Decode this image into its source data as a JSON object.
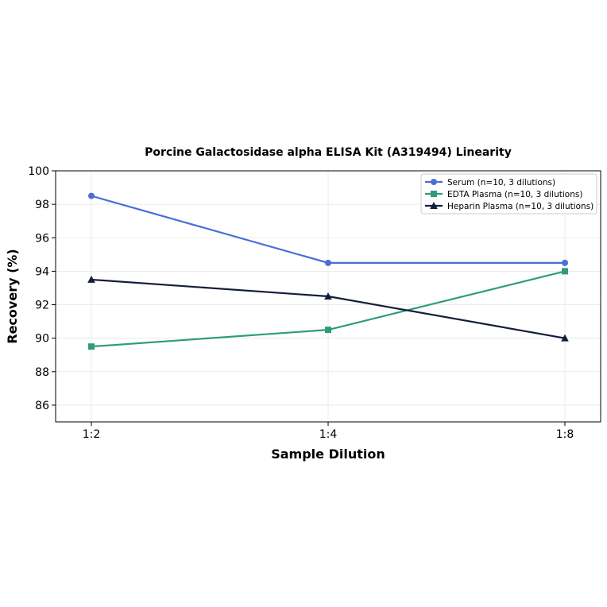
{
  "chart_data": {
    "type": "line",
    "title": "Porcine Galactosidase alpha ELISA Kit (A319494) Linearity",
    "xlabel": "Sample Dilution",
    "ylabel": "Recovery (%)",
    "categories": [
      "1:2",
      "1:4",
      "1:8"
    ],
    "ylim": [
      85,
      100
    ],
    "yticks": [
      86,
      88,
      90,
      92,
      94,
      96,
      98,
      100
    ],
    "grid": true,
    "legend_position": "top-right",
    "series": [
      {
        "name": "Serum (n=10, 3 dilutions)",
        "values": [
          98.5,
          94.5,
          94.5
        ],
        "color": "#4a6fd6",
        "marker": "circle"
      },
      {
        "name": "EDTA Plasma (n=10, 3 dilutions)",
        "values": [
          89.5,
          90.5,
          94.0
        ],
        "color": "#2e9c7a",
        "marker": "square"
      },
      {
        "name": "Heparin Plasma (n=10, 3 dilutions)",
        "values": [
          93.5,
          92.5,
          90.0
        ],
        "color": "#141e3c",
        "marker": "triangle"
      }
    ]
  }
}
